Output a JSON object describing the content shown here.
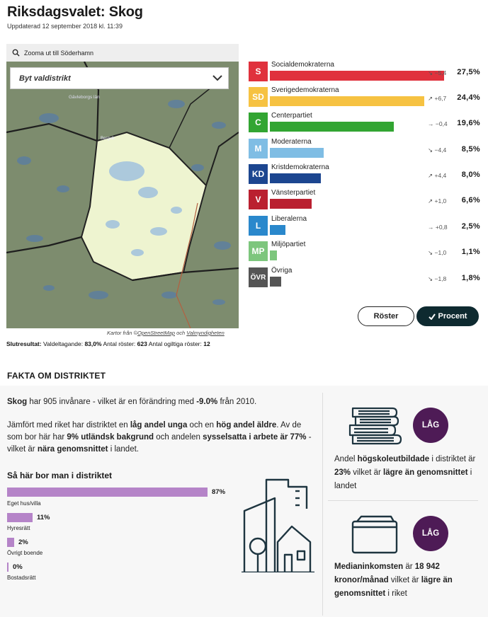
{
  "header": {
    "title": "Riksdagsvalet: Skog",
    "updated": "Uppdaterad 12 september 2018 kl. 11:39"
  },
  "map": {
    "zoom_label": "Zooma ut till Söderhamn",
    "dropdown_placeholder": "Byt valdistrikt",
    "place_label_1": "Gävleborgs län",
    "place_label_2": "Bergvik",
    "credit_prefix": "Kartor från ©",
    "credit_link1": "OpenStreetMap",
    "credit_mid": " och ",
    "credit_link2": "Valmyndigheten"
  },
  "final_result": {
    "label": "Slutresultat:",
    "turnout_label": "Valdeltagande:",
    "turnout": "83,0%",
    "votes_label": "Antal röster:",
    "votes": "623",
    "invalid_label": "Antal ogiltiga röster:",
    "invalid": "12"
  },
  "parties": [
    {
      "abbr": "S",
      "name": "Socialdemokraterna",
      "pct": 27.5,
      "value": "27,5%",
      "change": "−5,4",
      "arrow": "down",
      "color": "#e0313d"
    },
    {
      "abbr": "SD",
      "name": "Sverigedemokraterna",
      "pct": 24.4,
      "value": "24,4%",
      "change": "+6,7",
      "arrow": "up",
      "color": "#f6c242"
    },
    {
      "abbr": "C",
      "name": "Centerpartiet",
      "pct": 19.6,
      "value": "19,6%",
      "change": "−0,4",
      "arrow": "right",
      "color": "#32a532"
    },
    {
      "abbr": "M",
      "name": "Moderaterna",
      "pct": 8.5,
      "value": "8,5%",
      "change": "−4,4",
      "arrow": "down",
      "color": "#7fbde4"
    },
    {
      "abbr": "KD",
      "name": "Kristdemokraterna",
      "pct": 8.0,
      "value": "8,0%",
      "change": "+4,4",
      "arrow": "up",
      "color": "#1c4690"
    },
    {
      "abbr": "V",
      "name": "Vänsterpartiet",
      "pct": 6.6,
      "value": "6,6%",
      "change": "+1,0",
      "arrow": "up",
      "color": "#ba2030"
    },
    {
      "abbr": "L",
      "name": "Liberalerna",
      "pct": 2.5,
      "value": "2,5%",
      "change": "+0,8",
      "arrow": "right",
      "color": "#2a88cc"
    },
    {
      "abbr": "MP",
      "name": "Miljöpartiet",
      "pct": 1.1,
      "value": "1,1%",
      "change": "−1,0",
      "arrow": "down",
      "color": "#7dc67d"
    },
    {
      "abbr": "ÖVR",
      "name": "Övriga",
      "pct": 1.8,
      "value": "1,8%",
      "change": "−1,8",
      "arrow": "down",
      "color": "#555555"
    }
  ],
  "toggle": {
    "votes_label": "Röster",
    "percent_label": "Procent"
  },
  "facts": {
    "section_title": "FAKTA OM DISTRIKTET",
    "p1": {
      "name": "Skog",
      "t1": " har 905 invånare - vilket är en förändring med ",
      "change": "-9.0%",
      "t2": " från 2010."
    },
    "p2": {
      "t1": "Jämfört med riket har distriktet en ",
      "b1": "låg andel unga",
      "t2": " och en ",
      "b2": "hög andel äldre",
      "t3": ". Av de som bor här har ",
      "b3": "9% utländsk bakgrund",
      "t4": " och andelen ",
      "b4": "sysselsatta i arbete är 77%",
      "t5": " - vilket är ",
      "b5": "nära genomsnittet",
      "t6": " i landet."
    },
    "housing_title": "Så här bor man i distriktet",
    "housing": [
      {
        "label": "Eget hus/villa",
        "pct": 87,
        "value": "87%"
      },
      {
        "label": "Hyresrätt",
        "pct": 11,
        "value": "11%"
      },
      {
        "label": "Övrigt boende",
        "pct": 2,
        "value": "2%"
      },
      {
        "label": "Bostadsrätt",
        "pct": 0,
        "value": "0%"
      }
    ],
    "education": {
      "badge": "LÅG",
      "t1": "Andel ",
      "b1": "högskoleutbildade",
      "t2": " i distriktet är ",
      "b2": "23%",
      "t3": " vilket är ",
      "b3": "lägre än genomsnittet",
      "t4": " i landet"
    },
    "income": {
      "badge": "LÅG",
      "t1": "Medianinkomsten",
      "t2": " är ",
      "b1": "18 942 kronor/månad",
      "t3": " vilket är ",
      "b2": "lägre än genomsnittet",
      "t4": " i riket"
    }
  }
}
